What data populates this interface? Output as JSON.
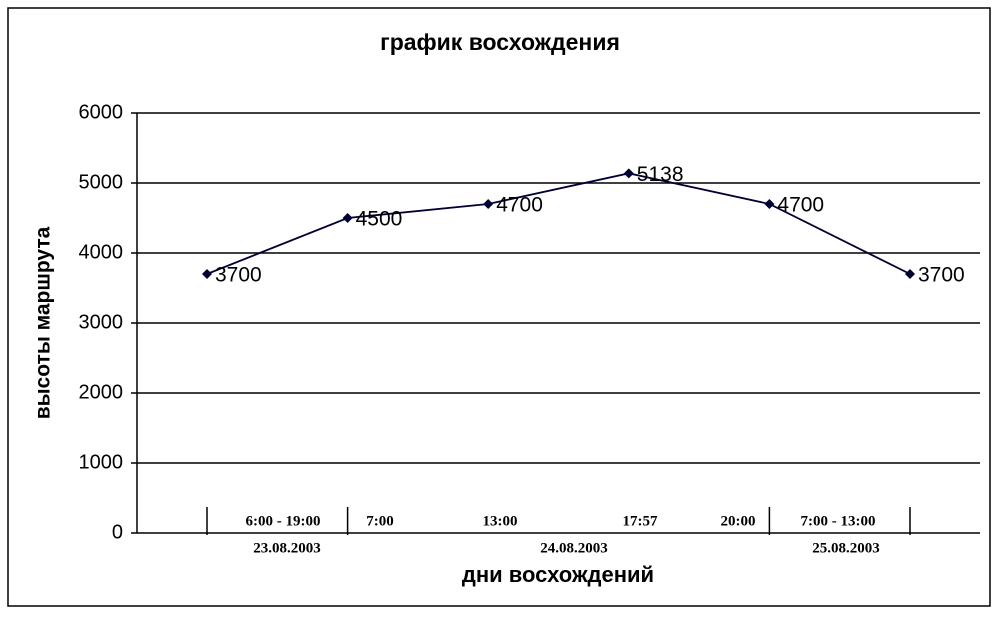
{
  "chart_data": {
    "type": "line",
    "title": "график восхождения",
    "x_label": "дни восхождений",
    "y_label": "высоты маршрута",
    "categories": [
      "6:00 - 19:00",
      "7:00",
      "13:00",
      "17:57",
      "20:00",
      "7:00 - 13:00"
    ],
    "date_groups": [
      "23.08.2003",
      "24.08.2003",
      "25.08.2003"
    ],
    "series": [
      {
        "color": "#000033",
        "values": [
          3700,
          4500,
          4700,
          5138,
          4700,
          3700
        ]
      }
    ],
    "ylim": [
      0,
      6000
    ],
    "yticks": [
      0,
      1000,
      2000,
      3000,
      4000,
      5000,
      6000
    ],
    "grid": true
  }
}
